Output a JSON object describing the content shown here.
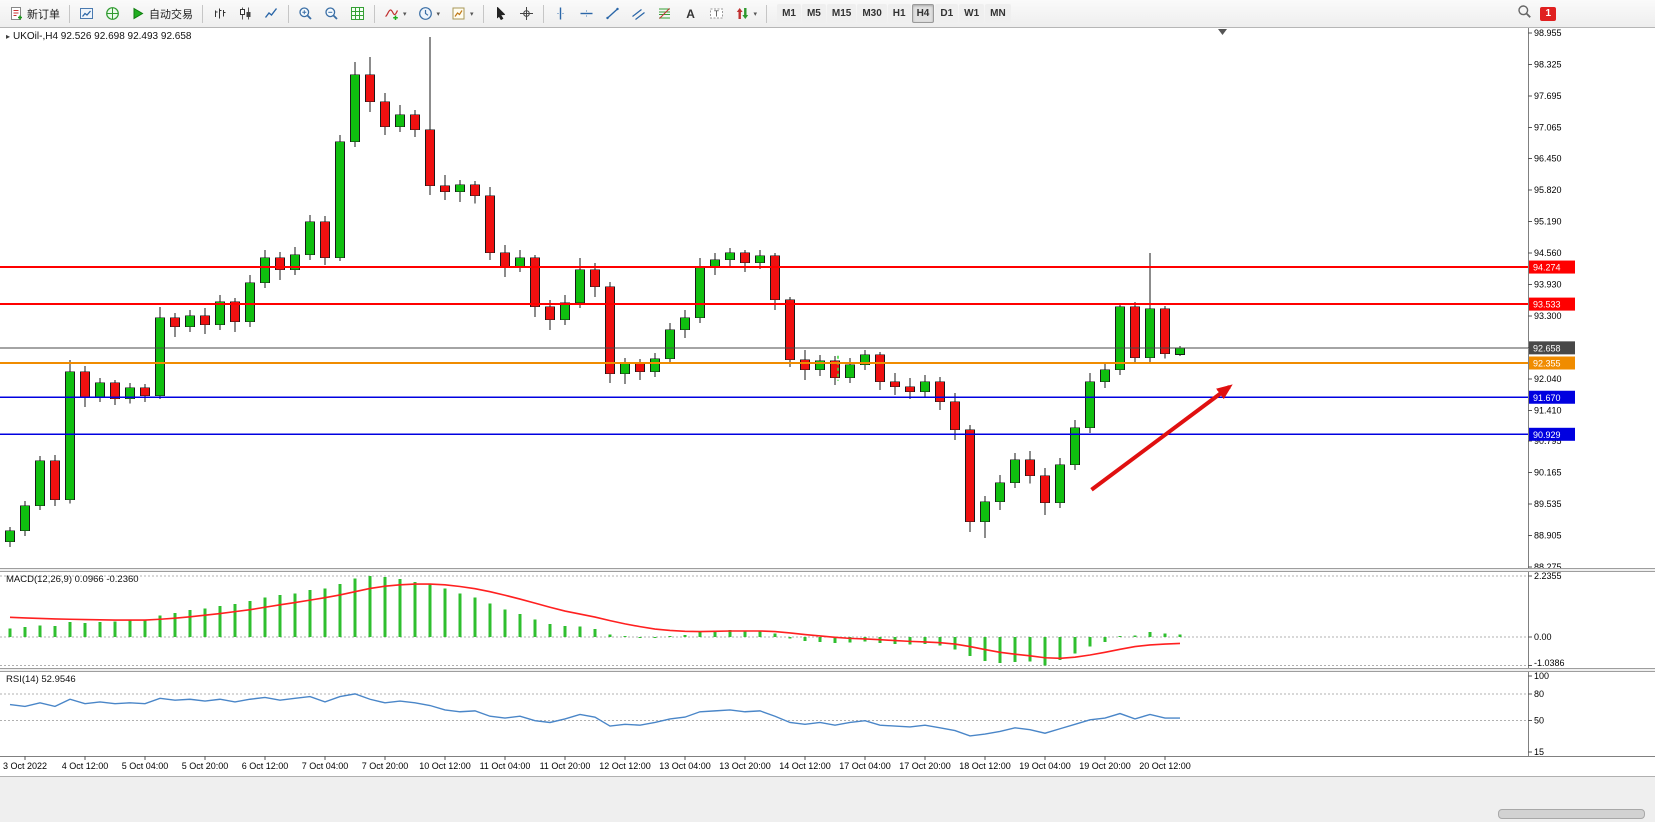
{
  "toolbar": {
    "items": [
      {
        "type": "button",
        "name": "new-order-button",
        "icon": "new-order-icon",
        "label": "新订单"
      },
      {
        "type": "sep"
      },
      {
        "type": "icon",
        "name": "market-watch-button",
        "icon": "market-watch-icon"
      },
      {
        "type": "icon",
        "name": "navigator-button",
        "icon": "navigator-icon"
      },
      {
        "type": "button",
        "name": "auto-trading-button",
        "icon": "auto-trading-icon",
        "label": "自动交易"
      },
      {
        "type": "sep"
      },
      {
        "type": "icon",
        "name": "bar-chart-button",
        "icon": "bar-chart-icon"
      },
      {
        "type": "icon",
        "name": "candlestick-button",
        "icon": "candlestick-icon"
      },
      {
        "type": "icon",
        "name": "line-chart-button",
        "icon": "line-chart-icon"
      },
      {
        "type": "sep"
      },
      {
        "type": "icon",
        "name": "zoom-in-button",
        "icon": "zoom-in-icon"
      },
      {
        "type": "icon",
        "name": "zoom-out-button",
        "icon": "zoom-out-icon"
      },
      {
        "type": "icon",
        "name": "tile-windows-button",
        "icon": "grid-icon"
      },
      {
        "type": "sep"
      },
      {
        "type": "icon",
        "name": "indicators-button",
        "icon": "indicators-icon",
        "caret": true
      },
      {
        "type": "icon",
        "name": "periods-button",
        "icon": "periods-icon",
        "caret": true
      },
      {
        "type": "icon",
        "name": "templates-button",
        "icon": "templates-icon",
        "caret": true
      },
      {
        "type": "sep"
      },
      {
        "type": "icon",
        "name": "cursor-button",
        "icon": "cursor-icon"
      },
      {
        "type": "icon",
        "name": "crosshair-button",
        "icon": "crosshair-icon"
      },
      {
        "type": "sep"
      },
      {
        "type": "icon",
        "name": "vertical-line-button",
        "icon": "vertical-line-icon"
      },
      {
        "type": "icon",
        "name": "horizontal-line-button",
        "icon": "horizontal-line-icon"
      },
      {
        "type": "icon",
        "name": "trendline-button",
        "icon": "trendline-icon"
      },
      {
        "type": "icon",
        "name": "channel-button",
        "icon": "channel-icon"
      },
      {
        "type": "icon",
        "name": "fibonacci-button",
        "icon": "fibonacci-icon"
      },
      {
        "type": "icon",
        "name": "text-button",
        "icon": "text-icon"
      },
      {
        "type": "icon",
        "name": "label-button",
        "icon": "label-icon"
      },
      {
        "type": "icon",
        "name": "arrows-button",
        "icon": "arrows-icon",
        "caret": true
      },
      {
        "type": "sep"
      },
      {
        "type": "timeframes"
      }
    ],
    "timeframes": {
      "options": [
        "M1",
        "M5",
        "M15",
        "M30",
        "H1",
        "H4",
        "D1",
        "W1",
        "MN"
      ],
      "active": "H4"
    },
    "right": {
      "search_icon": "search-icon",
      "badge_count": "1"
    }
  },
  "chart": {
    "symbol_label": "UKOil-,H4 92.526 92.698 92.493 92.658",
    "price_axis_labels": [
      "98.955",
      "98.325",
      "97.695",
      "97.065",
      "96.450",
      "95.820",
      "95.190",
      "94.560",
      "93.930",
      "93.300",
      "92.670",
      "92.040",
      "91.410",
      "90.795",
      "90.165",
      "89.535",
      "88.905",
      "88.275"
    ],
    "time_axis_labels": [
      "3 Oct 2022",
      "4 Oct 12:00",
      "5 Oct 04:00",
      "5 Oct 20:00",
      "6 Oct 12:00",
      "7 Oct 04:00",
      "7 Oct 20:00",
      "10 Oct 12:00",
      "11 Oct 04:00",
      "11 Oct 20:00",
      "12 Oct 12:00",
      "13 Oct 04:00",
      "13 Oct 20:00",
      "14 Oct 12:00",
      "17 Oct 04:00",
      "17 Oct 20:00",
      "18 Oct 12:00",
      "19 Oct 04:00",
      "19 Oct 20:00",
      "20 Oct 12:00"
    ]
  },
  "chart_data": {
    "type": "candlestick",
    "symbol": "UKOil",
    "timeframe": "H4",
    "price_range": [
      88.275,
      98.955
    ],
    "current_price": "92.658",
    "candle_colors": {
      "up": "#0FBF0F",
      "down": "#EF1010"
    },
    "ohlc": {
      "open": [
        88.78,
        89.0,
        89.5,
        90.4,
        89.62,
        92.18,
        91.68,
        91.96,
        91.64,
        91.86,
        91.7,
        93.26,
        93.08,
        93.3,
        93.12,
        93.58,
        93.18,
        93.96,
        94.46,
        94.22,
        94.52,
        95.18,
        94.46,
        96.78,
        98.12,
        97.58,
        97.08,
        97.32,
        97.02,
        95.9,
        95.78,
        95.92,
        95.7,
        94.56,
        94.28,
        94.46,
        93.48,
        93.22,
        93.56,
        94.22,
        93.88,
        92.14,
        92.34,
        92.18,
        92.44,
        93.02,
        93.26,
        94.28,
        94.42,
        94.56,
        94.36,
        94.5,
        93.62,
        92.42,
        92.22,
        92.4,
        92.06,
        92.32,
        92.52,
        91.98,
        91.88,
        91.78,
        91.98,
        91.58,
        91.02,
        89.18,
        89.58,
        89.96,
        90.42,
        90.1,
        89.56,
        90.32,
        91.06,
        91.98,
        92.22,
        93.48,
        92.46,
        93.44,
        92.526
      ],
      "high": [
        89.08,
        89.6,
        90.5,
        90.52,
        92.42,
        92.3,
        92.06,
        92.02,
        91.96,
        91.94,
        93.48,
        93.36,
        93.42,
        93.46,
        93.72,
        93.66,
        94.12,
        94.62,
        94.58,
        94.68,
        95.32,
        95.3,
        96.92,
        98.38,
        98.48,
        97.76,
        97.52,
        97.42,
        98.88,
        96.12,
        96.02,
        96.0,
        95.88,
        94.72,
        94.62,
        94.52,
        93.62,
        93.72,
        94.46,
        94.36,
        93.98,
        92.46,
        92.44,
        92.56,
        93.16,
        93.42,
        94.46,
        94.56,
        94.66,
        94.62,
        94.62,
        94.56,
        93.68,
        92.62,
        92.52,
        92.5,
        92.46,
        92.62,
        92.58,
        92.16,
        92.06,
        92.12,
        92.08,
        91.76,
        91.12,
        89.7,
        90.12,
        90.56,
        90.6,
        90.26,
        90.46,
        91.22,
        92.16,
        92.36,
        93.56,
        93.58,
        94.56,
        93.5,
        92.698
      ],
      "low": [
        88.68,
        88.9,
        89.42,
        89.5,
        89.55,
        91.48,
        91.58,
        91.52,
        91.55,
        91.58,
        91.64,
        92.88,
        92.98,
        92.94,
        93.02,
        92.98,
        93.08,
        93.86,
        94.02,
        94.12,
        94.42,
        94.32,
        94.4,
        96.68,
        97.38,
        96.92,
        96.98,
        96.88,
        95.72,
        95.62,
        95.58,
        95.55,
        94.42,
        94.08,
        94.18,
        93.28,
        93.02,
        93.12,
        93.46,
        93.68,
        91.96,
        91.94,
        92.02,
        92.08,
        92.34,
        92.86,
        93.16,
        94.12,
        94.28,
        94.18,
        94.24,
        93.42,
        92.28,
        92.02,
        92.1,
        91.92,
        91.96,
        92.22,
        91.82,
        91.72,
        91.64,
        91.68,
        91.42,
        90.82,
        88.98,
        88.86,
        89.42,
        89.86,
        89.95,
        89.32,
        89.46,
        90.22,
        90.96,
        91.86,
        92.12,
        92.36,
        92.38,
        92.45,
        92.493
      ],
      "close": [
        89.0,
        89.5,
        90.4,
        89.62,
        92.18,
        91.68,
        91.96,
        91.64,
        91.86,
        91.7,
        93.26,
        93.08,
        93.3,
        93.12,
        93.58,
        93.18,
        93.96,
        94.46,
        94.22,
        94.52,
        95.18,
        94.46,
        96.78,
        98.12,
        97.58,
        97.08,
        97.32,
        97.02,
        95.9,
        95.78,
        95.92,
        95.7,
        94.56,
        94.28,
        94.46,
        93.48,
        93.22,
        93.56,
        94.22,
        93.88,
        92.14,
        92.34,
        92.18,
        92.44,
        93.02,
        93.26,
        94.28,
        94.42,
        94.56,
        94.36,
        94.5,
        93.62,
        92.42,
        92.22,
        92.4,
        92.06,
        92.32,
        92.52,
        91.98,
        91.88,
        91.78,
        91.98,
        91.58,
        91.02,
        89.18,
        89.58,
        89.96,
        90.42,
        90.1,
        89.56,
        90.32,
        91.06,
        91.98,
        92.22,
        93.48,
        92.46,
        93.44,
        92.54,
        92.658
      ]
    },
    "horizontal_lines": [
      {
        "price": 94.274,
        "label": "94.274",
        "color": "#FF0000",
        "role": "resistance"
      },
      {
        "price": 93.533,
        "label": "93.533",
        "color": "#FF0000",
        "role": "resistance"
      },
      {
        "price": 92.658,
        "label": "92.658",
        "color": "#484848",
        "role": "current-price"
      },
      {
        "price": 92.355,
        "label": "92.355",
        "color": "#F08C00",
        "role": "level"
      },
      {
        "price": 91.67,
        "label": "91.670",
        "color": "#0000E0",
        "role": "support"
      },
      {
        "price": 90.929,
        "label": "90.929",
        "color": "#0000E0",
        "role": "support"
      }
    ],
    "indicators": {
      "macd": {
        "label": "MACD(12,26,9) 0.0966 -0.2360",
        "axis_labels": [
          "2.2355",
          "0.00",
          "-1.0386"
        ],
        "axis_values": [
          2.2355,
          0,
          -1.0386
        ],
        "histogram": [
          0.32,
          0.36,
          0.42,
          0.4,
          0.55,
          0.52,
          0.55,
          0.57,
          0.6,
          0.62,
          0.78,
          0.88,
          0.98,
          1.05,
          1.14,
          1.2,
          1.32,
          1.45,
          1.53,
          1.6,
          1.72,
          1.78,
          1.95,
          2.15,
          2.24,
          2.2,
          2.12,
          2.02,
          1.95,
          1.78,
          1.6,
          1.45,
          1.22,
          1.0,
          0.85,
          0.65,
          0.48,
          0.4,
          0.38,
          0.3,
          0.1,
          0.02,
          -0.04,
          -0.04,
          0.02,
          0.08,
          0.18,
          0.24,
          0.26,
          0.24,
          0.22,
          0.12,
          -0.05,
          -0.15,
          -0.18,
          -0.22,
          -0.2,
          -0.16,
          -0.22,
          -0.26,
          -0.28,
          -0.26,
          -0.32,
          -0.45,
          -0.7,
          -0.88,
          -0.95,
          -0.92,
          -0.9,
          -1.04,
          -0.85,
          -0.6,
          -0.35,
          -0.18,
          0.02,
          0.05,
          0.18,
          0.12,
          0.0966
        ],
        "signal": [
          0.72,
          0.7,
          0.68,
          0.66,
          0.65,
          0.64,
          0.63,
          0.62,
          0.62,
          0.62,
          0.65,
          0.69,
          0.74,
          0.8,
          0.86,
          0.93,
          1.0,
          1.09,
          1.18,
          1.26,
          1.35,
          1.44,
          1.54,
          1.66,
          1.78,
          1.86,
          1.91,
          1.94,
          1.94,
          1.91,
          1.85,
          1.77,
          1.66,
          1.53,
          1.39,
          1.24,
          1.09,
          0.95,
          0.84,
          0.73,
          0.6,
          0.48,
          0.38,
          0.29,
          0.24,
          0.21,
          0.2,
          0.21,
          0.22,
          0.22,
          0.22,
          0.2,
          0.15,
          0.09,
          0.04,
          -0.01,
          -0.05,
          -0.07,
          -0.1,
          -0.13,
          -0.16,
          -0.18,
          -0.21,
          -0.26,
          -0.35,
          -0.46,
          -0.56,
          -0.63,
          -0.69,
          -0.76,
          -0.78,
          -0.74,
          -0.66,
          -0.56,
          -0.45,
          -0.35,
          -0.29,
          -0.26,
          -0.236
        ],
        "colors": {
          "histogram": "#2FBF2F",
          "signal": "#FF2020"
        }
      },
      "rsi": {
        "label": "RSI(14) 52.9546",
        "axis_labels": [
          "100",
          "80",
          "50",
          "15"
        ],
        "axis_values": [
          100,
          80,
          50,
          15
        ],
        "levels": [
          80,
          50
        ],
        "values": [
          68,
          66,
          70,
          66,
          74,
          69,
          71,
          69,
          70,
          69,
          75,
          73,
          74,
          72,
          74,
          71,
          74,
          76,
          73,
          75,
          77,
          71,
          77,
          80,
          74,
          70,
          72,
          70,
          67,
          62,
          60,
          61,
          55,
          53,
          55,
          50,
          48,
          52,
          57,
          54,
          44,
          46,
          45,
          48,
          52,
          54,
          60,
          61,
          62,
          60,
          61,
          55,
          48,
          46,
          48,
          45,
          48,
          50,
          45,
          44,
          43,
          45,
          42,
          39,
          33,
          35,
          38,
          42,
          40,
          36,
          41,
          46,
          51,
          53,
          58,
          52,
          57,
          53,
          52.95
        ],
        "color": "#4A86C8"
      }
    },
    "annotations": {
      "arrow": {
        "color": "#E01010",
        "from": {
          "index": 72.1,
          "price": 89.82
        },
        "to": {
          "index": 81.3,
          "price": 91.88
        }
      },
      "dash_marker": {
        "index": 55.2,
        "price_from": 92.0,
        "price_to": 92.5,
        "color": "#3DDC3D"
      }
    }
  }
}
